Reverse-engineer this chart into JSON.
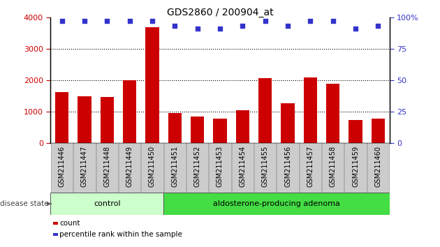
{
  "title": "GDS2860 / 200904_at",
  "samples": [
    "GSM211446",
    "GSM211447",
    "GSM211448",
    "GSM211449",
    "GSM211450",
    "GSM211451",
    "GSM211452",
    "GSM211453",
    "GSM211454",
    "GSM211455",
    "GSM211456",
    "GSM211457",
    "GSM211458",
    "GSM211459",
    "GSM211460"
  ],
  "counts": [
    1620,
    1490,
    1460,
    2000,
    3680,
    960,
    840,
    790,
    1050,
    2060,
    1260,
    2090,
    1900,
    730,
    790
  ],
  "percentiles": [
    97,
    97,
    97,
    97,
    97,
    93,
    91,
    91,
    93,
    97,
    93,
    97,
    97,
    91,
    93
  ],
  "bar_color": "#cc0000",
  "dot_color": "#3333cc",
  "ylim_left": [
    0,
    4000
  ],
  "ylim_right": [
    0,
    100
  ],
  "yticks_left": [
    0,
    1000,
    2000,
    3000,
    4000
  ],
  "yticks_right": [
    0,
    25,
    50,
    75,
    100
  ],
  "control_count": 5,
  "adenoma_count": 10,
  "control_label": "control",
  "adenoma_label": "aldosterone-producing adenoma",
  "disease_state_label": "disease state",
  "legend_count_label": "count",
  "legend_percentile_label": "percentile rank within the sample",
  "control_color": "#ccffcc",
  "adenoma_color": "#44dd44",
  "tick_label_color_left": "#cc0000",
  "tick_label_color_right": "#3333cc",
  "bar_width": 0.6,
  "xtick_bg_color": "#cccccc",
  "xtick_border_color": "#999999"
}
